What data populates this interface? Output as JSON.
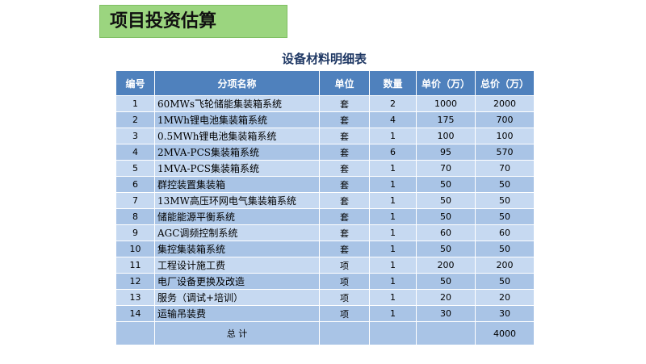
{
  "header": {
    "title": "项目投资估算"
  },
  "table": {
    "title": "设备材料明细表",
    "columns": [
      "编号",
      "分项名称",
      "单位",
      "数量",
      "单价（万）",
      "总价（万）"
    ],
    "rows": [
      [
        1,
        "60MWs飞轮储能集装箱系统",
        "套",
        2,
        1000,
        2000
      ],
      [
        2,
        "1MWh锂电池集装箱系统",
        "套",
        4,
        175,
        700
      ],
      [
        3,
        "0.5MWh锂电池集装箱系统",
        "套",
        1,
        100,
        100
      ],
      [
        4,
        "2MVA-PCS集装箱系统",
        "套",
        6,
        95,
        570
      ],
      [
        5,
        "1MVA-PCS集装箱系统",
        "套",
        1,
        70,
        70
      ],
      [
        6,
        "群控装置集装箱",
        "套",
        1,
        50,
        50
      ],
      [
        7,
        "13MW高压环网电气集装箱系统",
        "套",
        1,
        50,
        50
      ],
      [
        8,
        "储能能源平衡系统",
        "套",
        1,
        50,
        50
      ],
      [
        9,
        "AGC调频控制系统",
        "套",
        1,
        60,
        60
      ],
      [
        10,
        "集控集装箱系统",
        "套",
        1,
        50,
        50
      ],
      [
        11,
        "工程设计施工费",
        "项",
        1,
        200,
        200
      ],
      [
        12,
        "电厂设备更换及改造",
        "项",
        1,
        50,
        50
      ],
      [
        13,
        "服务（调试+培训）",
        "项",
        1,
        20,
        20
      ],
      [
        14,
        "运输吊装费",
        "项",
        1,
        30,
        30
      ]
    ],
    "total": {
      "label": "总 计",
      "value": 4000
    }
  }
}
